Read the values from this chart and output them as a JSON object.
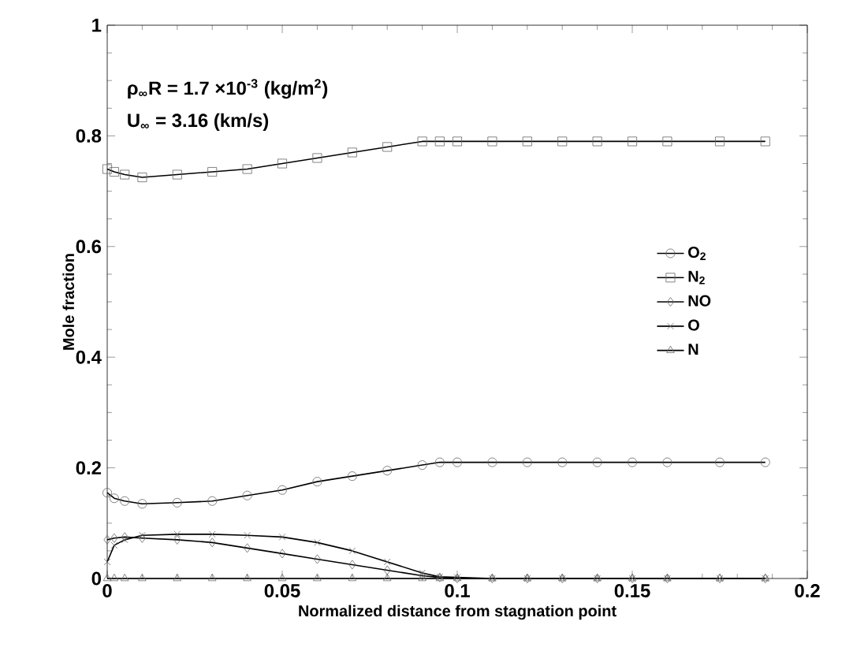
{
  "chart_data": {
    "type": "line",
    "xlabel": "Normalized distance from stagnation point",
    "ylabel": "Mole fraction",
    "annotations": [
      "ρ$_{∞}$R = 1.7 ×10$^{-3}$ (kg/m$^{2}$)",
      "U$_{∞}$ = 3.16 (km/s)"
    ],
    "x": [
      0,
      0.002,
      0.005,
      0.01,
      0.02,
      0.03,
      0.04,
      0.05,
      0.06,
      0.07,
      0.08,
      0.09,
      0.095,
      0.1,
      0.11,
      0.12,
      0.13,
      0.14,
      0.15,
      0.16,
      0.175,
      0.188
    ],
    "series": [
      {
        "name": "O$_{2}$",
        "color": "#000000",
        "marker": "circle",
        "values": [
          0.155,
          0.145,
          0.14,
          0.135,
          0.137,
          0.14,
          0.15,
          0.16,
          0.175,
          0.185,
          0.195,
          0.205,
          0.21,
          0.21,
          0.21,
          0.21,
          0.21,
          0.21,
          0.21,
          0.21,
          0.21,
          0.21
        ]
      },
      {
        "name": "N$_{2}$",
        "color": "#000000",
        "marker": "square",
        "values": [
          0.74,
          0.735,
          0.73,
          0.725,
          0.73,
          0.735,
          0.74,
          0.75,
          0.76,
          0.77,
          0.78,
          0.79,
          0.79,
          0.79,
          0.79,
          0.79,
          0.79,
          0.79,
          0.79,
          0.79,
          0.79,
          0.79
        ]
      },
      {
        "name": "NO",
        "color": "#000000",
        "marker": "diamond",
        "values": [
          0.07,
          0.073,
          0.075,
          0.073,
          0.07,
          0.065,
          0.055,
          0.045,
          0.035,
          0.025,
          0.015,
          0.005,
          0.002,
          0,
          0,
          0,
          0,
          0,
          0,
          0,
          0,
          0
        ]
      },
      {
        "name": "O",
        "color": "#000000",
        "marker": "cross",
        "values": [
          0.03,
          0.06,
          0.07,
          0.078,
          0.08,
          0.08,
          0.078,
          0.075,
          0.065,
          0.05,
          0.03,
          0.01,
          0.003,
          0.002,
          0,
          0,
          0,
          0,
          0,
          0,
          0,
          0
        ]
      },
      {
        "name": "N",
        "color": "#000000",
        "marker": "triangle",
        "values": [
          0,
          0,
          0,
          0,
          0,
          0,
          0,
          0,
          0,
          0,
          0,
          0,
          0,
          0,
          0,
          0,
          0,
          0,
          0,
          0,
          0,
          0
        ]
      }
    ],
    "xlim": [
      0,
      0.2
    ],
    "ylim": [
      0,
      1
    ],
    "xticks": [
      0,
      0.05,
      0.1,
      0.15,
      0.2
    ],
    "yticks": [
      0,
      0.2,
      0.4,
      0.6,
      0.8,
      1
    ],
    "grid": false,
    "legend": "right",
    "line_style": "solid"
  }
}
